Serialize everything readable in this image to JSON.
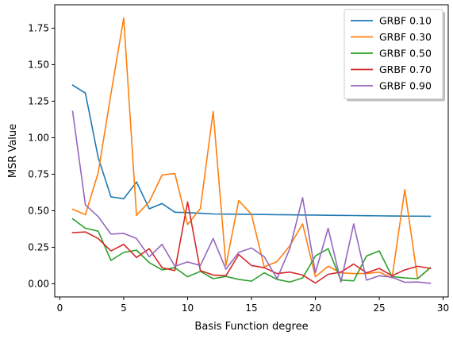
{
  "chart_data": {
    "type": "line",
    "title": "",
    "xlabel": "Basis Function degree",
    "ylabel": "MSR Value",
    "xlim": [
      -0.4,
      30.4
    ],
    "ylim": [
      -0.09,
      1.91
    ],
    "xticks": [
      0,
      5,
      10,
      15,
      20,
      25,
      30
    ],
    "xtick_labels": [
      "0",
      "5",
      "10",
      "15",
      "20",
      "25",
      "30"
    ],
    "yticks": [
      0.0,
      0.25,
      0.5,
      0.75,
      1.0,
      1.25,
      1.5,
      1.75
    ],
    "ytick_labels": [
      "0.00",
      "0.25",
      "0.50",
      "0.75",
      "1.00",
      "1.25",
      "1.50",
      "1.75"
    ],
    "grid": false,
    "legend_position": "top-right",
    "x": [
      1,
      2,
      3,
      4,
      5,
      6,
      7,
      8,
      9,
      10,
      11,
      12,
      13,
      14,
      15,
      16,
      17,
      18,
      19,
      20,
      21,
      22,
      23,
      24,
      25,
      26,
      27,
      28,
      29
    ],
    "series": [
      {
        "name": "GRBF 0.10",
        "color": "#1f77b4",
        "values": [
          1.36,
          1.305,
          0.865,
          0.595,
          0.582,
          0.697,
          0.513,
          0.549,
          0.49,
          0.487,
          0.483,
          0.478,
          0.477,
          0.476,
          0.475,
          0.474,
          0.473,
          0.472,
          0.471,
          0.47,
          0.469,
          0.468,
          0.467,
          0.466,
          0.465,
          0.464,
          0.463,
          0.463,
          0.462
        ]
      },
      {
        "name": "GRBF 0.30",
        "color": "#ff7f0e",
        "values": [
          0.51,
          0.473,
          0.76,
          1.3,
          1.82,
          0.468,
          0.562,
          0.745,
          0.755,
          0.405,
          0.515,
          1.18,
          0.125,
          0.57,
          0.475,
          0.115,
          0.152,
          0.26,
          0.41,
          0.048,
          0.12,
          0.075,
          0.07,
          0.07,
          0.08,
          0.04,
          0.645,
          0.035,
          0.11
        ]
      },
      {
        "name": "GRBF 0.50",
        "color": "#2ca02c",
        "values": [
          0.445,
          0.38,
          0.36,
          0.16,
          0.215,
          0.23,
          0.145,
          0.095,
          0.11,
          0.048,
          0.085,
          0.035,
          0.05,
          0.03,
          0.018,
          0.075,
          0.03,
          0.012,
          0.04,
          0.19,
          0.24,
          0.025,
          0.02,
          0.19,
          0.225,
          0.05,
          0.04,
          0.035,
          0.11
        ]
      },
      {
        "name": "GRBF 0.70",
        "color": "#d62728",
        "values": [
          0.35,
          0.355,
          0.31,
          0.225,
          0.27,
          0.18,
          0.24,
          0.11,
          0.09,
          0.56,
          0.09,
          0.06,
          0.055,
          0.2,
          0.125,
          0.11,
          0.07,
          0.08,
          0.06,
          0.005,
          0.065,
          0.08,
          0.135,
          0.075,
          0.105,
          0.055,
          0.095,
          0.12,
          0.105
        ]
      },
      {
        "name": "GRBF 0.90",
        "color": "#9467bd",
        "values": [
          1.18,
          0.54,
          0.46,
          0.34,
          0.345,
          0.31,
          0.185,
          0.27,
          0.12,
          0.15,
          0.125,
          0.31,
          0.1,
          0.215,
          0.245,
          0.185,
          0.035,
          0.24,
          0.59,
          0.075,
          0.38,
          0.012,
          0.41,
          0.025,
          0.055,
          0.045,
          0.01,
          0.012,
          0.003
        ]
      }
    ]
  }
}
